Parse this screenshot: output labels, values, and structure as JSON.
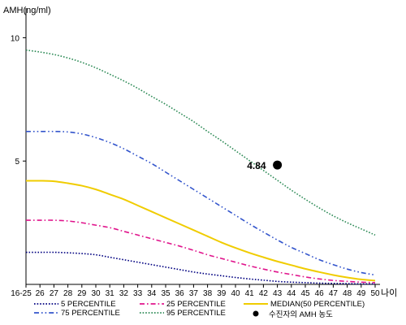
{
  "chart_data": {
    "type": "line",
    "ylabel": "AMH(ng/ml)",
    "xlabel": "나이",
    "x_ticks": [
      "16-25",
      "26",
      "27",
      "28",
      "29",
      "30",
      "31",
      "32",
      "33",
      "34",
      "35",
      "36",
      "37",
      "38",
      "39",
      "40",
      "41",
      "42",
      "43",
      "44",
      "45",
      "46",
      "47",
      "48",
      "49",
      "50"
    ],
    "y_ticks": [
      5,
      10
    ],
    "ylim": [
      0,
      11.2
    ],
    "series": [
      {
        "name": "5 PERCENTILE",
        "color": "#000080",
        "dash": "dotted",
        "values": [
          1.3,
          1.3,
          1.3,
          1.28,
          1.25,
          1.2,
          1.1,
          1.0,
          0.9,
          0.8,
          0.7,
          0.6,
          0.5,
          0.42,
          0.35,
          0.28,
          0.22,
          0.17,
          0.12,
          0.09,
          0.07,
          0.05,
          0.04,
          0.03,
          0.02,
          0.02
        ]
      },
      {
        "name": "25 PERCENTILE",
        "color": "#e0148c",
        "dash": "dashdot",
        "values": [
          2.6,
          2.6,
          2.6,
          2.57,
          2.5,
          2.4,
          2.3,
          2.15,
          2.0,
          1.85,
          1.7,
          1.55,
          1.38,
          1.2,
          1.05,
          0.9,
          0.75,
          0.62,
          0.5,
          0.4,
          0.3,
          0.22,
          0.16,
          0.12,
          0.09,
          0.07
        ]
      },
      {
        "name": "MEDIAN(50 PERCENTILE)",
        "color": "#f0cc00",
        "dash": "solid",
        "values": [
          4.2,
          4.2,
          4.18,
          4.1,
          4.0,
          3.85,
          3.65,
          3.45,
          3.2,
          2.95,
          2.7,
          2.45,
          2.2,
          1.95,
          1.7,
          1.48,
          1.28,
          1.1,
          0.93,
          0.78,
          0.63,
          0.5,
          0.38,
          0.28,
          0.2,
          0.15
        ]
      },
      {
        "name": "75 PERCENTILE",
        "color": "#3355cc",
        "dash": "dashdotdot",
        "values": [
          6.2,
          6.2,
          6.2,
          6.18,
          6.1,
          5.95,
          5.75,
          5.5,
          5.2,
          4.9,
          4.55,
          4.2,
          3.85,
          3.5,
          3.15,
          2.8,
          2.45,
          2.12,
          1.8,
          1.5,
          1.25,
          1.0,
          0.8,
          0.62,
          0.48,
          0.38
        ]
      },
      {
        "name": "95 PERCENTILE",
        "color": "#2e8b57",
        "dash": "dotted",
        "values": [
          9.5,
          9.42,
          9.32,
          9.18,
          9.0,
          8.78,
          8.52,
          8.25,
          7.95,
          7.62,
          7.3,
          6.95,
          6.6,
          6.2,
          5.82,
          5.42,
          5.02,
          4.62,
          4.22,
          3.82,
          3.45,
          3.1,
          2.78,
          2.5,
          2.25,
          2.0
        ]
      }
    ],
    "point": {
      "label": "4.84",
      "legend": "수진자의 AMH 농도",
      "x": "43",
      "y": 4.84,
      "color": "#000000"
    },
    "legend_position": "bottom"
  }
}
